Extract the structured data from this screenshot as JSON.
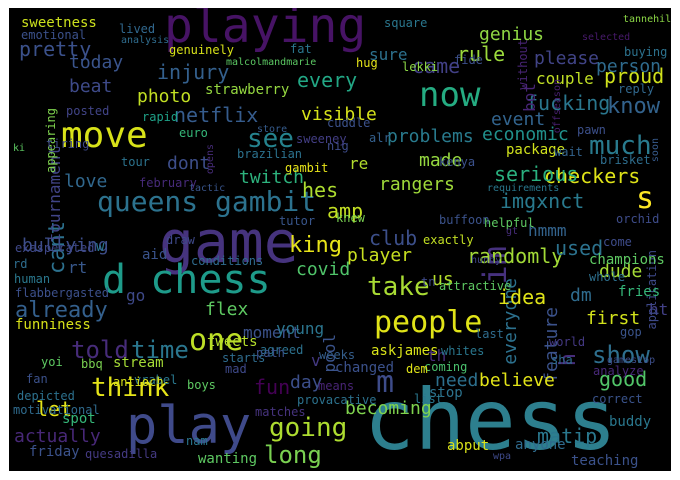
{
  "cloud": {
    "background": "#000000",
    "words": [
      {
        "text": "chess",
        "color": "#2d7f8e"
      },
      {
        "text": "play",
        "color": "#3f4a8a"
      },
      {
        "text": "game",
        "color": "#46337e"
      },
      {
        "text": "playing",
        "color": "#471365"
      },
      {
        "text": "move",
        "color": "#d8e219"
      },
      {
        "text": "d chess",
        "color": "#1e9b8a"
      },
      {
        "text": "people",
        "color": "#e0e318"
      },
      {
        "text": "queens gambit",
        "color": "#2c728e"
      },
      {
        "text": "now",
        "color": "#25ac82"
      },
      {
        "text": "im",
        "color": "#46317e"
      },
      {
        "text": "s",
        "color": "#fde725"
      },
      {
        "text": "much",
        "color": "#297b8e"
      },
      {
        "text": "m",
        "color": "#3e4c8a"
      },
      {
        "text": "see",
        "color": "#25838e"
      },
      {
        "text": "one",
        "color": "#bddf26"
      },
      {
        "text": "time",
        "color": "#2a768e"
      },
      {
        "text": "take",
        "color": "#a8db34"
      },
      {
        "text": "think",
        "color": "#e5e419"
      },
      {
        "text": "going",
        "color": "#addc30"
      },
      {
        "text": "show",
        "color": "#2e6f8e"
      },
      {
        "text": "long",
        "color": "#7ad151"
      },
      {
        "text": "cant",
        "color": "#2c718e"
      },
      {
        "text": "told",
        "color": "#472c7a"
      },
      {
        "text": "already",
        "color": "#34608d"
      },
      {
        "text": "every",
        "color": "#22a785"
      },
      {
        "text": "know",
        "color": "#33638d"
      },
      {
        "text": "came",
        "color": "#424086"
      },
      {
        "text": "king",
        "color": "#e7e419"
      },
      {
        "text": "amp",
        "color": "#c2df23"
      },
      {
        "text": "club",
        "color": "#3c4f8a"
      },
      {
        "text": "rule",
        "color": "#9bd93c"
      },
      {
        "text": "netflix",
        "color": "#365c8d"
      },
      {
        "text": "fucking",
        "color": "#2a778e"
      },
      {
        "text": "pretty",
        "color": "#3b518b"
      },
      {
        "text": "h",
        "color": "#472d7b"
      },
      {
        "text": "proud",
        "color": "#d0e11c"
      },
      {
        "text": "person",
        "color": "#2f6b8e"
      },
      {
        "text": "randomly",
        "color": "#a2da37"
      },
      {
        "text": "hes",
        "color": "#addc30"
      },
      {
        "text": "used",
        "color": "#2c728e"
      },
      {
        "text": "bullying",
        "color": "#3d4e8a"
      },
      {
        "text": "player",
        "color": "#c8e020"
      },
      {
        "text": "injury",
        "color": "#34608d"
      },
      {
        "text": "checkers",
        "color": "#dfe318"
      },
      {
        "text": "serious",
        "color": "#2ab07f"
      },
      {
        "text": "imgxnct",
        "color": "#297a8e"
      },
      {
        "text": "covid",
        "color": "#50c46a"
      },
      {
        "text": "everyone",
        "color": "#2c718e"
      },
      {
        "text": "feature",
        "color": "#3b528b"
      },
      {
        "text": "idea",
        "color": "#dfe318"
      },
      {
        "text": "first",
        "color": "#d2e21b"
      },
      {
        "text": "flex",
        "color": "#5ec962"
      },
      {
        "text": "fun",
        "color": "#440154"
      },
      {
        "text": "day",
        "color": "#3c4f8a"
      },
      {
        "text": "need",
        "color": "#2d708e"
      },
      {
        "text": "believe",
        "color": "#e2e418"
      },
      {
        "text": "good",
        "color": "#52c569"
      },
      {
        "text": "actually",
        "color": "#482878"
      },
      {
        "text": "let",
        "color": "#e5e419"
      },
      {
        "text": "becoming",
        "color": "#7fd34e"
      },
      {
        "text": "matip",
        "color": "#2a788e"
      },
      {
        "text": "genius",
        "color": "#8fd744"
      },
      {
        "text": "please",
        "color": "#414487"
      },
      {
        "text": "photo",
        "color": "#c2df23"
      },
      {
        "text": "visible",
        "color": "#d5e21a"
      },
      {
        "text": "twitch",
        "color": "#2db27d"
      },
      {
        "text": "beat",
        "color": "#3e4a89"
      },
      {
        "text": "problems",
        "color": "#297b8e"
      },
      {
        "text": "economic",
        "color": "#21918c"
      },
      {
        "text": "love",
        "color": "#31688e"
      },
      {
        "text": "dont",
        "color": "#3d4e8a"
      },
      {
        "text": "rangers",
        "color": "#9fda3a"
      },
      {
        "text": "made",
        "color": "#95d840"
      },
      {
        "text": "event",
        "color": "#32648e"
      },
      {
        "text": "tournament",
        "color": "#414487"
      },
      {
        "text": "today",
        "color": "#3a548c"
      },
      {
        "text": "bot",
        "color": "#482576"
      },
      {
        "text": "moment",
        "color": "#3b528b"
      },
      {
        "text": "young",
        "color": "#2b758e"
      },
      {
        "text": "dude",
        "color": "#a5db36"
      },
      {
        "text": "dm",
        "color": "#2f6c8e"
      },
      {
        "text": "pool",
        "color": "#3a538b"
      },
      {
        "text": "hmmm",
        "color": "#33638d"
      },
      {
        "text": "go",
        "color": "#3e4989"
      },
      {
        "text": "rt",
        "color": "#38588c"
      },
      {
        "text": "us",
        "color": "#b5de2b"
      },
      {
        "text": "sure",
        "color": "#2d718e"
      },
      {
        "text": "couple",
        "color": "#c0df25"
      },
      {
        "text": "th",
        "color": "#472c7a"
      },
      {
        "text": "ht",
        "color": "#424086"
      },
      {
        "text": "re",
        "color": "#b2dd2d"
      },
      {
        "text": "v",
        "color": "#443983"
      },
      {
        "text": "w",
        "color": "#2a768e"
      },
      {
        "text": "sweetness",
        "color": "#cde11d"
      },
      {
        "text": "emotional",
        "color": "#3b518b"
      },
      {
        "text": "lived",
        "color": "#31688e"
      },
      {
        "text": "analysis",
        "color": "#2f6c8e"
      },
      {
        "text": "square",
        "color": "#2a778e"
      },
      {
        "text": "fide",
        "color": "#3c4f8a"
      },
      {
        "text": "lekki",
        "color": "#8bd646"
      },
      {
        "text": "genuinely",
        "color": "#d8e219"
      },
      {
        "text": "malcolmandmarie",
        "color": "#5cc863"
      },
      {
        "text": "fat",
        "color": "#2a778e"
      },
      {
        "text": "hug",
        "color": "#e5e419"
      },
      {
        "text": "alr",
        "color": "#34608d"
      },
      {
        "text": "strawberry",
        "color": "#95d840"
      },
      {
        "text": "posted",
        "color": "#414487"
      },
      {
        "text": "rapid",
        "color": "#1fa188"
      },
      {
        "text": "euro",
        "color": "#35b779"
      },
      {
        "text": "appearing",
        "color": "#7fd34e"
      },
      {
        "text": "ki",
        "color": "#5ec962"
      },
      {
        "text": "tiring",
        "color": "#3e4989"
      },
      {
        "text": "tour",
        "color": "#2c738e"
      },
      {
        "text": "store",
        "color": "#365c8d"
      },
      {
        "text": "brazilian",
        "color": "#2c728e"
      },
      {
        "text": "gambit",
        "color": "#e7e419"
      },
      {
        "text": "opens",
        "color": "#472c7a"
      },
      {
        "text": "nig",
        "color": "#3e4c8a"
      },
      {
        "text": "sweeney",
        "color": "#433e85"
      },
      {
        "text": "cuddle",
        "color": "#3b518b"
      },
      {
        "text": "february",
        "color": "#472a7a"
      },
      {
        "text": "tactic",
        "color": "#39558c"
      },
      {
        "text": "package",
        "color": "#d0e11c"
      },
      {
        "text": "kenya",
        "color": "#3b518b"
      },
      {
        "text": "brisket",
        "color": "#2e6e8e"
      },
      {
        "text": "wait",
        "color": "#33638d"
      },
      {
        "text": "pawn",
        "color": "#3c508b"
      },
      {
        "text": "reply",
        "color": "#31688e"
      },
      {
        "text": "buying",
        "color": "#2c728e"
      },
      {
        "text": "selected",
        "color": "#481a6c"
      },
      {
        "text": "offseason",
        "color": "#481f70"
      },
      {
        "text": "tannehill",
        "color": "#8bd646"
      },
      {
        "text": "without",
        "color": "#482475"
      },
      {
        "text": "soon",
        "color": "#375b8d"
      },
      {
        "text": "application",
        "color": "#3e4989"
      },
      {
        "text": "requirements",
        "color": "#2a788e"
      },
      {
        "text": "orchid",
        "color": "#3e4c8a"
      },
      {
        "text": "helpful",
        "color": "#5ec962"
      },
      {
        "text": "buffoon",
        "color": "#3b528b"
      },
      {
        "text": "knew",
        "color": "#7ad151"
      },
      {
        "text": "gt",
        "color": "#472d7b"
      },
      {
        "text": "exactly",
        "color": "#c2df23"
      },
      {
        "text": "hunny",
        "color": "#3f4788"
      },
      {
        "text": "come",
        "color": "#3e4c8a"
      },
      {
        "text": "whole",
        "color": "#2d708e"
      },
      {
        "text": "champions",
        "color": "#5ec962"
      },
      {
        "text": "fries",
        "color": "#35b779"
      },
      {
        "text": "aid",
        "color": "#3a538b"
      },
      {
        "text": "draw",
        "color": "#3e4989"
      },
      {
        "text": "tutor",
        "color": "#39568c"
      },
      {
        "text": "exasperated",
        "color": "#3f4889"
      },
      {
        "text": "rd",
        "color": "#2e6d8e"
      },
      {
        "text": "human",
        "color": "#2a788e"
      },
      {
        "text": "flabbergasted",
        "color": "#3c508b"
      },
      {
        "text": "funniness",
        "color": "#d8e219"
      },
      {
        "text": "conditions",
        "color": "#2f6b8e"
      },
      {
        "text": "tweets",
        "color": "#b5de2b"
      },
      {
        "text": "agreed",
        "color": "#2c718e"
      },
      {
        "text": "askjames",
        "color": "#d8e219"
      },
      {
        "text": "attractive",
        "color": "#5ec962"
      },
      {
        "text": "tn",
        "color": "#3e4989"
      },
      {
        "text": "stream",
        "color": "#a5db36"
      },
      {
        "text": "vrabel",
        "color": "#2a788e"
      },
      {
        "text": "yoi",
        "color": "#5ec962"
      },
      {
        "text": "bbq",
        "color": "#7ad151"
      },
      {
        "text": "antioch",
        "color": "#d8e219"
      },
      {
        "text": "path",
        "color": "#3b518b"
      },
      {
        "text": "weeks",
        "color": "#355f8d"
      },
      {
        "text": "changed",
        "color": "#3b518b"
      },
      {
        "text": "whites",
        "color": "#2a778e"
      },
      {
        "text": "coming",
        "color": "#4ac16d"
      },
      {
        "text": "dem",
        "color": "#dfe318"
      },
      {
        "text": "sha",
        "color": "#2f6c8e"
      },
      {
        "text": "world",
        "color": "#443983"
      },
      {
        "text": "gop",
        "color": "#3a548c"
      },
      {
        "text": "gamestop",
        "color": "#3d4e8a"
      },
      {
        "text": "analyze",
        "color": "#482878"
      },
      {
        "text": "last",
        "color": "#2f6c8e"
      },
      {
        "text": "fan",
        "color": "#3b518b"
      },
      {
        "text": "mad",
        "color": "#3e4989"
      },
      {
        "text": "boys",
        "color": "#5ec962"
      },
      {
        "text": "starts",
        "color": "#2f6c8e"
      },
      {
        "text": "means",
        "color": "#482475"
      },
      {
        "text": "provacative",
        "color": "#2c728e"
      },
      {
        "text": "matches",
        "color": "#46337e"
      },
      {
        "text": "depicted",
        "color": "#2c718e"
      },
      {
        "text": "motivational",
        "color": "#2f6b8e"
      },
      {
        "text": "spot",
        "color": "#35b779"
      },
      {
        "text": "stop",
        "color": "#2c738e"
      },
      {
        "text": "list",
        "color": "#2a778e"
      },
      {
        "text": "correct",
        "color": "#3a538b"
      },
      {
        "text": "buddy",
        "color": "#2a788e"
      },
      {
        "text": "friday",
        "color": "#3b528b"
      },
      {
        "text": "quesadilla",
        "color": "#443a83"
      },
      {
        "text": "nam",
        "color": "#2a768e"
      },
      {
        "text": "wanting",
        "color": "#5ec962"
      },
      {
        "text": "abput",
        "color": "#d8e219"
      },
      {
        "text": "wpa",
        "color": "#3e4989"
      },
      {
        "text": "anyone",
        "color": "#2f6b8e"
      },
      {
        "text": "teaching",
        "color": "#3b528b"
      }
    ]
  }
}
